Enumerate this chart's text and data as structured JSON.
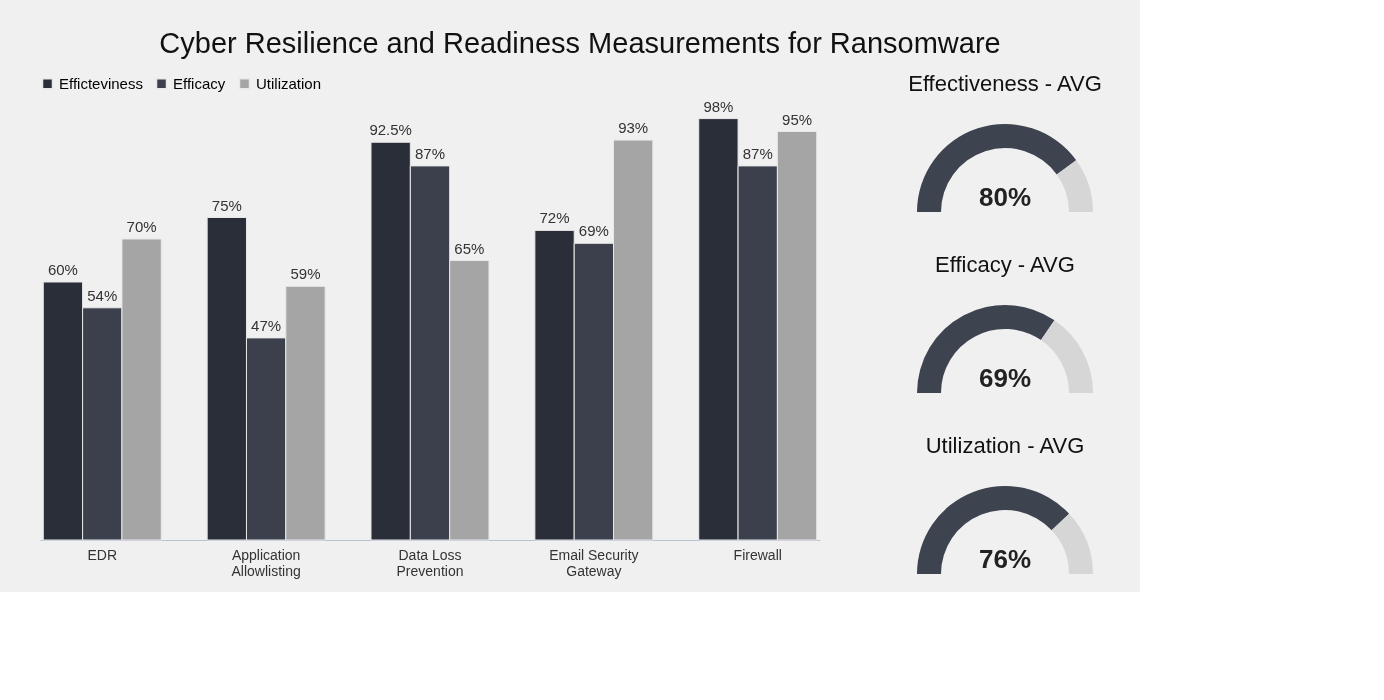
{
  "chart_data": [
    {
      "type": "bar",
      "title": "Cyber Resilience and Readiness Measurements for Ransomware",
      "categories": [
        "EDR",
        "Application Allowlisting",
        "Data Loss Prevention",
        "Email Security Gateway",
        "Firewall"
      ],
      "series": [
        {
          "name": "Efficteviness",
          "color": "#2a2e38",
          "values": [
            60,
            75,
            92.5,
            72,
            98
          ],
          "value_labels": [
            "60%",
            "75%",
            "92.5%",
            "72%",
            "98%"
          ]
        },
        {
          "name": "Efficacy",
          "color": "#3b404c",
          "values": [
            54,
            47,
            87,
            69,
            87
          ],
          "value_labels": [
            "54%",
            "47%",
            "87%",
            "69%",
            "87%"
          ]
        },
        {
          "name": "Utilization",
          "color": "#a5a5a5",
          "values": [
            70,
            59,
            65,
            93,
            95
          ],
          "value_labels": [
            "70%",
            "59%",
            "65%",
            "93%",
            "95%"
          ]
        }
      ],
      "grid": false,
      "legend": "top"
    },
    {
      "type": "donut",
      "title": "Effectiveness - AVG",
      "categories": [
        null,
        null
      ],
      "values": [
        80,
        20
      ],
      "colors": [
        "#3e4350",
        "#d6d6d6"
      ],
      "value_labels": [
        "80%",
        null
      ]
    },
    {
      "type": "donut",
      "title": "Efficacy - AVG",
      "categories": [
        null,
        null
      ],
      "values": [
        69,
        31
      ],
      "colors": [
        "#3e4350",
        "#d6d6d6"
      ],
      "value_labels": [
        "69%",
        null
      ]
    },
    {
      "type": "donut",
      "title": "Utilization - AVG",
      "categories": [
        null,
        null
      ],
      "values": [
        76,
        24
      ],
      "colors": [
        "#3e4350",
        "#d6d6d6"
      ],
      "value_labels": [
        "76%",
        null
      ]
    }
  ]
}
